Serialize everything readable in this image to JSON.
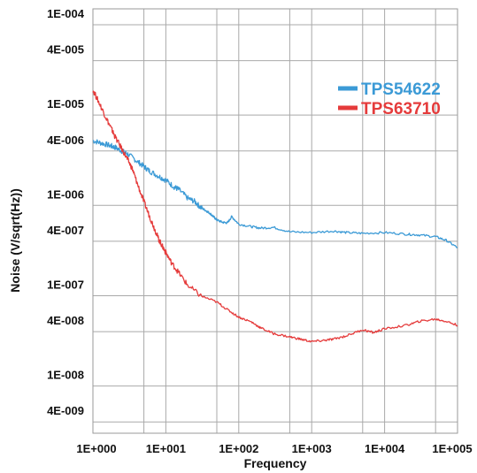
{
  "chart_data": {
    "type": "line",
    "xlabel": "Frequency",
    "ylabel": "Noise (V/sqrt(Hz))",
    "x_scale": "log",
    "y_scale": "log",
    "xlim": [
      1,
      100000
    ],
    "ylim": [
      3e-09,
      0.00015
    ],
    "grid": true,
    "legend_position": "top-right",
    "x_ticks": [
      {
        "value": 1,
        "label": "1E+000"
      },
      {
        "value": 10,
        "label": "1E+001"
      },
      {
        "value": 100,
        "label": "1E+002"
      },
      {
        "value": 1000,
        "label": "1E+003"
      },
      {
        "value": 10000,
        "label": "1E+004"
      },
      {
        "value": 100000,
        "label": "1E+005"
      }
    ],
    "y_ticks": [
      {
        "value": 0.0001,
        "label": "1E-004"
      },
      {
        "value": 4e-05,
        "label": "4E-005"
      },
      {
        "value": 1e-05,
        "label": "1E-005"
      },
      {
        "value": 4e-06,
        "label": "4E-006"
      },
      {
        "value": 1e-06,
        "label": "1E-006"
      },
      {
        "value": 4e-07,
        "label": "4E-007"
      },
      {
        "value": 1e-07,
        "label": "1E-007"
      },
      {
        "value": 4e-08,
        "label": "4E-008"
      },
      {
        "value": 1e-08,
        "label": "1E-008"
      },
      {
        "value": 4e-09,
        "label": "4E-009"
      }
    ],
    "series": [
      {
        "name": "TPS54622",
        "color": "#3b9ad6",
        "x": [
          1,
          1.3,
          1.7,
          2,
          2.5,
          3,
          4,
          5,
          6,
          8,
          10,
          13,
          15,
          20,
          25,
          30,
          35,
          40,
          45,
          50,
          60,
          70,
          80,
          100,
          150,
          200,
          300,
          500,
          1000,
          2000,
          3000,
          5000,
          10000,
          20000,
          30000,
          50000,
          70000,
          100000
        ],
        "y": [
          5.2e-06,
          4.9e-06,
          4.6e-06,
          4.4e-06,
          4e-06,
          3.7e-06,
          3.1e-06,
          2.7e-06,
          2.4e-06,
          2.1e-06,
          1.9e-06,
          1.6e-06,
          1.5e-06,
          1.2e-06,
          1.1e-06,
          9.5e-07,
          8.8e-07,
          8.2e-07,
          7.5e-07,
          6.9e-07,
          6.5e-07,
          6.4e-07,
          7.5e-07,
          6.2e-07,
          5.8e-07,
          5.6e-07,
          5.7e-07,
          5.1e-07,
          5e-07,
          5.2e-07,
          5e-07,
          4.9e-07,
          5e-07,
          4.8e-07,
          4.7e-07,
          4.5e-07,
          4.1e-07,
          3.4e-07
        ]
      },
      {
        "name": "TPS63710",
        "color": "#e53b3b",
        "x": [
          1,
          1.2,
          1.5,
          1.8,
          2,
          2.5,
          3,
          3.5,
          4,
          5,
          6,
          7,
          8,
          9,
          10,
          12,
          15,
          20,
          30,
          50,
          70,
          100,
          150,
          200,
          300,
          500,
          700,
          1000,
          1500,
          2000,
          3000,
          5000,
          7000,
          10000,
          20000,
          30000,
          50000,
          70000,
          100000
        ],
        "y": [
          1.9e-05,
          1.4e-05,
          9.5e-06,
          7e-06,
          5.8e-06,
          4.2e-06,
          3.2e-06,
          2.5e-06,
          1.8e-06,
          1.1e-06,
          7.5e-07,
          5.5e-07,
          4.2e-07,
          3.5e-07,
          3e-07,
          2.3e-07,
          1.8e-07,
          1.3e-07,
          1e-07,
          8.5e-08,
          7e-08,
          5.8e-08,
          5.1e-08,
          4.4e-08,
          3.8e-08,
          3.5e-08,
          3.3e-08,
          3.1e-08,
          3.2e-08,
          3.3e-08,
          3.6e-08,
          4.2e-08,
          3.9e-08,
          4.3e-08,
          4.7e-08,
          5.2e-08,
          5.5e-08,
          5.2e-08,
          4.7e-08
        ]
      }
    ]
  }
}
